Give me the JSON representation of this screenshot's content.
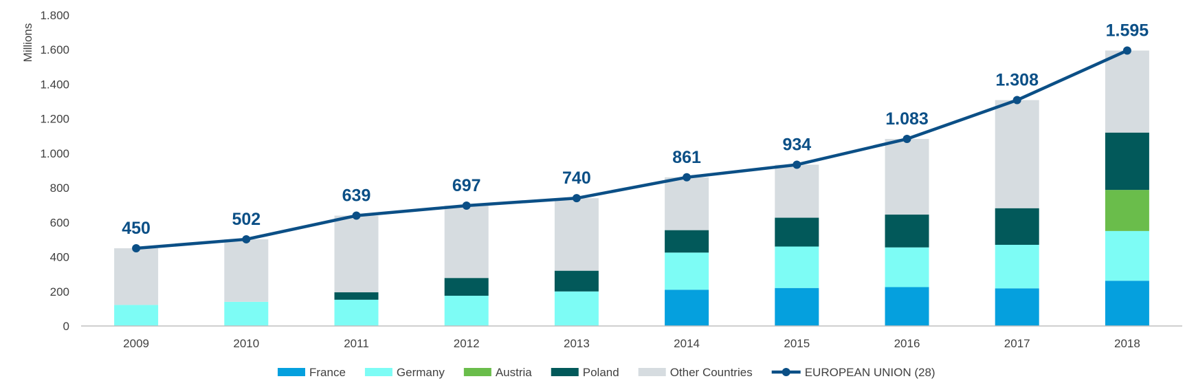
{
  "chart_data": {
    "type": "bar",
    "stacked": true,
    "title": "",
    "xlabel": "",
    "ylabel": "Millions",
    "ylim": [
      0,
      1800
    ],
    "y_ticks": [
      0,
      200,
      400,
      600,
      800,
      1000,
      1200,
      1400,
      1600,
      1800
    ],
    "y_tick_labels": [
      "0",
      "200",
      "400",
      "600",
      "800",
      "1.000",
      "1.200",
      "1.400",
      "1.600",
      "1.800"
    ],
    "categories": [
      "2009",
      "2010",
      "2011",
      "2012",
      "2013",
      "2014",
      "2015",
      "2016",
      "2017",
      "2018"
    ],
    "series": [
      {
        "name": "France",
        "kind": "bar",
        "color": "#05a0de",
        "values": [
          0,
          0,
          0,
          0,
          0,
          210,
          220,
          225,
          218,
          262
        ]
      },
      {
        "name": "Germany",
        "kind": "bar",
        "color": "#7dfcf5",
        "values": [
          122,
          140,
          152,
          175,
          200,
          215,
          240,
          230,
          252,
          288
        ]
      },
      {
        "name": "Austria",
        "kind": "bar",
        "color": "#6abd4b",
        "values": [
          0,
          0,
          0,
          0,
          0,
          0,
          0,
          0,
          0,
          238
        ]
      },
      {
        "name": "Poland",
        "kind": "bar",
        "color": "#02595a",
        "values": [
          0,
          0,
          43,
          103,
          120,
          130,
          167,
          190,
          212,
          332
        ]
      },
      {
        "name": "Other Countries",
        "kind": "bar",
        "color": "#d6dce0",
        "values": [
          328,
          362,
          444,
          419,
          420,
          306,
          307,
          438,
          626,
          475
        ]
      },
      {
        "name": "EUROPEAN UNION (28)",
        "kind": "line",
        "color": "#0b4f86",
        "values": [
          450,
          502,
          639,
          697,
          740,
          861,
          934,
          1083,
          1308,
          1595
        ]
      }
    ],
    "data_labels": [
      "450",
      "502",
      "639",
      "697",
      "740",
      "861",
      "934",
      "1.083",
      "1.308",
      "1.595"
    ],
    "legend_position": "bottom"
  }
}
